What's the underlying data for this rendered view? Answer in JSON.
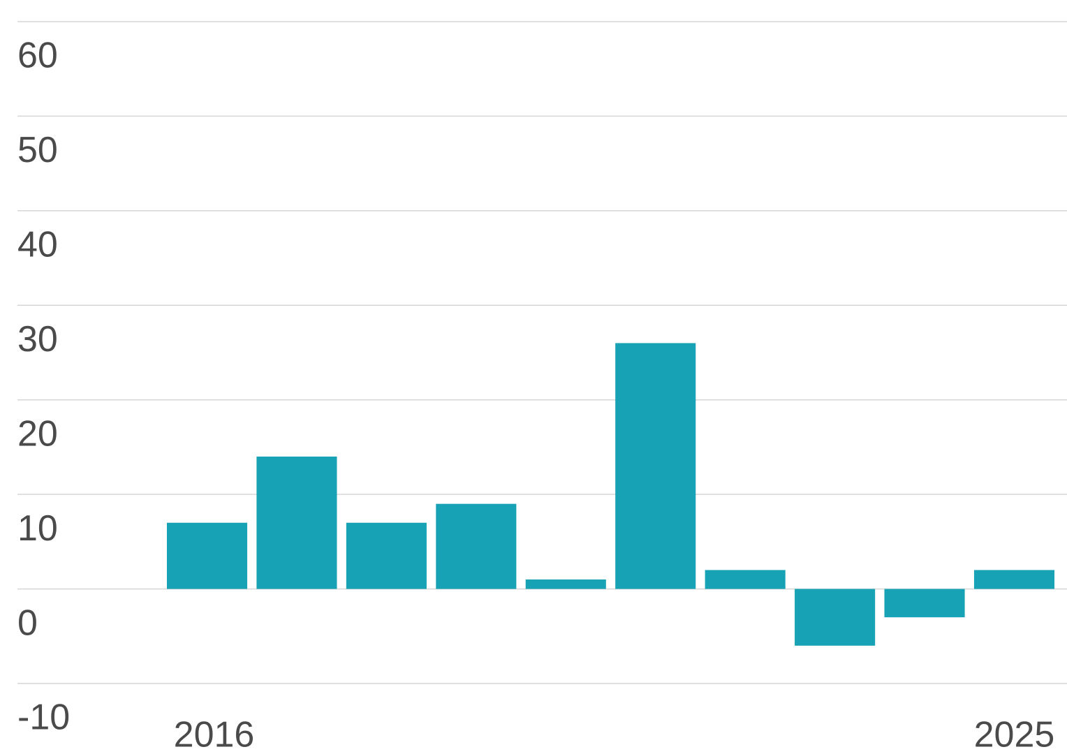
{
  "chart_data": {
    "type": "bar",
    "categories": [
      "2016",
      null,
      null,
      null,
      null,
      null,
      null,
      null,
      null,
      "2025"
    ],
    "values": [
      7,
      14,
      7,
      9,
      1,
      26,
      2,
      -6,
      -3,
      2
    ],
    "color": "#17a2b5",
    "ylim": [
      -10,
      60
    ],
    "yticks": [
      -10,
      0,
      10,
      20,
      30,
      40,
      50,
      60
    ],
    "grid": true
  }
}
